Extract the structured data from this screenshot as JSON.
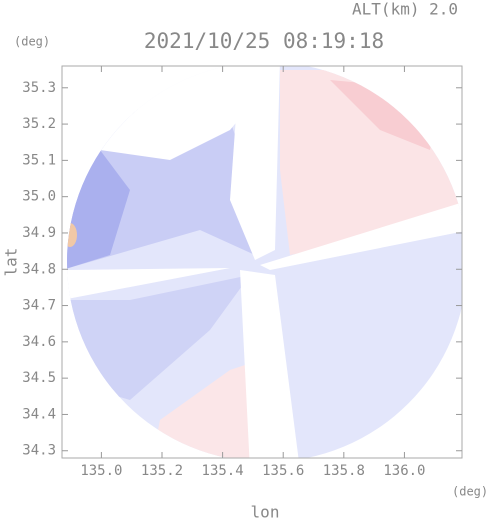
{
  "chart_data": {
    "type": "map",
    "title": "2021/10/25 08:19:18",
    "subtitle": "ALT(km) 2.0",
    "x_label": "lon",
    "y_label": "lat",
    "x_unit": "(deg)",
    "y_unit": "(deg)",
    "xlim": [
      134.87,
      136.19
    ],
    "ylim": [
      34.28,
      35.36
    ],
    "xticks": [
      {
        "value": 135,
        "label": "135.0"
      },
      135.2,
      135.4,
      135.6,
      135.8,
      {
        "value": 136,
        "label": "136.0"
      }
    ],
    "yticks": [
      34.3,
      34.4,
      34.5,
      34.6,
      34.7,
      34.8,
      34.9,
      {
        "value": 35,
        "label": "35.0"
      },
      35.1,
      35.2,
      35.3
    ]
  }
}
